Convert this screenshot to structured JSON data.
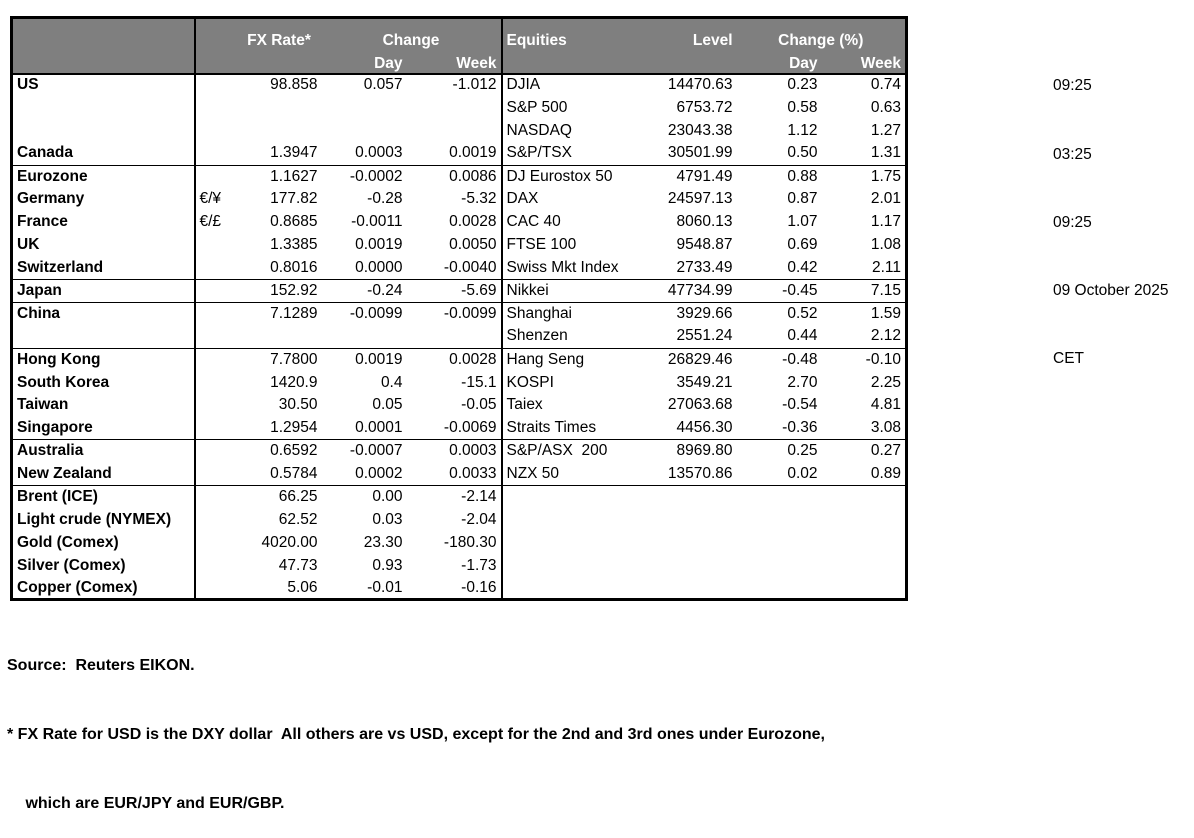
{
  "table": {
    "headers": {
      "fx_rate": "FX Rate*",
      "change": "Change",
      "day": "Day",
      "week": "Week",
      "equities": "Equities",
      "level": "Level",
      "change_pct": "Change (%)"
    },
    "rows": [
      {
        "name": "US",
        "fx": "98.858",
        "day": "0.057",
        "week": "-1.012",
        "eq": "DJIA",
        "level": "14470.63",
        "eq_day": "0.23",
        "eq_week": "0.74"
      },
      {
        "name": "",
        "eq": "S&P 500",
        "level": "6753.72",
        "eq_day": "0.58",
        "eq_week": "0.63"
      },
      {
        "name": "",
        "eq": "NASDAQ",
        "level": "23043.38",
        "eq_day": "1.12",
        "eq_week": "1.27"
      },
      {
        "name": "Canada",
        "fx": "1.3947",
        "day": "0.0003",
        "week": "0.0019",
        "eq": "S&P/TSX",
        "level": "30501.99",
        "eq_day": "0.50",
        "eq_week": "1.31",
        "sep": true
      },
      {
        "name": "Eurozone",
        "fx": "1.1627",
        "day": "-0.0002",
        "week": "0.0086",
        "eq": "DJ Eurostox 50",
        "level": "4791.49",
        "eq_day": "0.88",
        "eq_week": "1.75"
      },
      {
        "name": "Germany",
        "indent": true,
        "pair": "€/¥",
        "fx": "177.82",
        "day": "-0.28",
        "week": "-5.32",
        "eq": "DAX",
        "level": "24597.13",
        "eq_day": "0.87",
        "eq_week": "2.01"
      },
      {
        "name": "France",
        "indent": true,
        "pair": "€/£",
        "fx": "0.8685",
        "day": "-0.0011",
        "week": "0.0028",
        "eq": "CAC 40",
        "level": "8060.13",
        "eq_day": "1.07",
        "eq_week": "1.17"
      },
      {
        "name": "UK",
        "fx": "1.3385",
        "day": "0.0019",
        "week": "0.0050",
        "eq": "FTSE 100",
        "level": "9548.87",
        "eq_day": "0.69",
        "eq_week": "1.08"
      },
      {
        "name": "Switzerland",
        "fx": "0.8016",
        "day": "0.0000",
        "week": "-0.0040",
        "eq": "Swiss Mkt Index",
        "level": "2733.49",
        "eq_day": "0.42",
        "eq_week": "2.11",
        "sep": true
      },
      {
        "name": "Japan",
        "fx": "152.92",
        "day": "-0.24",
        "week": "-5.69",
        "eq": "Nikkei",
        "level": "47734.99",
        "eq_day": "-0.45",
        "eq_week": "7.15",
        "sep": true
      },
      {
        "name": "China",
        "fx": "7.1289",
        "day": "-0.0099",
        "week": "-0.0099",
        "eq": "Shanghai",
        "level": "3929.66",
        "eq_day": "0.52",
        "eq_week": "1.59"
      },
      {
        "name": "",
        "eq": "Shenzen",
        "level": "2551.24",
        "eq_day": "0.44",
        "eq_week": "2.12",
        "sep": true
      },
      {
        "name": "Hong Kong",
        "fx": "7.7800",
        "day": "0.0019",
        "week": "0.0028",
        "eq": "Hang Seng",
        "level": "26829.46",
        "eq_day": "-0.48",
        "eq_week": "-0.10"
      },
      {
        "name": "South Korea",
        "fx": "1420.9",
        "day": "0.4",
        "week": "-15.1",
        "eq": "KOSPI",
        "level": "3549.21",
        "eq_day": "2.70",
        "eq_week": "2.25"
      },
      {
        "name": "Taiwan",
        "fx": "30.50",
        "day": "0.05",
        "week": "-0.05",
        "eq": "Taiex",
        "level": "27063.68",
        "eq_day": "-0.54",
        "eq_week": "4.81"
      },
      {
        "name": "Singapore",
        "fx": "1.2954",
        "day": "0.0001",
        "week": "-0.0069",
        "eq": "Straits Times",
        "level": "4456.30",
        "eq_day": "-0.36",
        "eq_week": "3.08",
        "sep": true
      },
      {
        "name": "Australia",
        "fx": "0.6592",
        "day": "-0.0007",
        "week": "0.0003",
        "eq": "S&P/ASX  200",
        "level": "8969.80",
        "eq_day": "0.25",
        "eq_week": "0.27"
      },
      {
        "name": "New Zealand",
        "fx": "0.5784",
        "day": "0.0002",
        "week": "0.0033",
        "eq": "NZX 50",
        "level": "13570.86",
        "eq_day": "0.02",
        "eq_week": "0.89",
        "sep": true
      },
      {
        "name": "Brent (ICE)",
        "fx": "66.25",
        "day": "0.00",
        "week": "-2.14"
      },
      {
        "name": "Light crude (NYMEX)",
        "fx": "62.52",
        "day": "0.03",
        "week": "-2.04"
      },
      {
        "name": "Gold (Comex)",
        "fx": "4020.00",
        "day": "23.30",
        "week": "-180.30"
      },
      {
        "name": "Silver (Comex)",
        "fx": "47.73",
        "day": "0.93",
        "week": "-1.73"
      },
      {
        "name": "Copper (Comex)",
        "fx": "5.06",
        "day": "-0.01",
        "week": "-0.16"
      }
    ]
  },
  "timestamps": [
    "09:25",
    "03:25",
    "09:25",
    "09 October 2025",
    "CET"
  ],
  "footnotes": [
    "Source:  Reuters EIKON.",
    "* FX Rate for USD is the DXY dollar  All others are vs USD, except for the 2nd and 3rd ones under Eurozone,",
    " which are EUR/JPY and EUR/GBP."
  ],
  "colors": {
    "header_bg": "#7f7f7f",
    "header_text": "#ffffff",
    "border": "#000000"
  }
}
